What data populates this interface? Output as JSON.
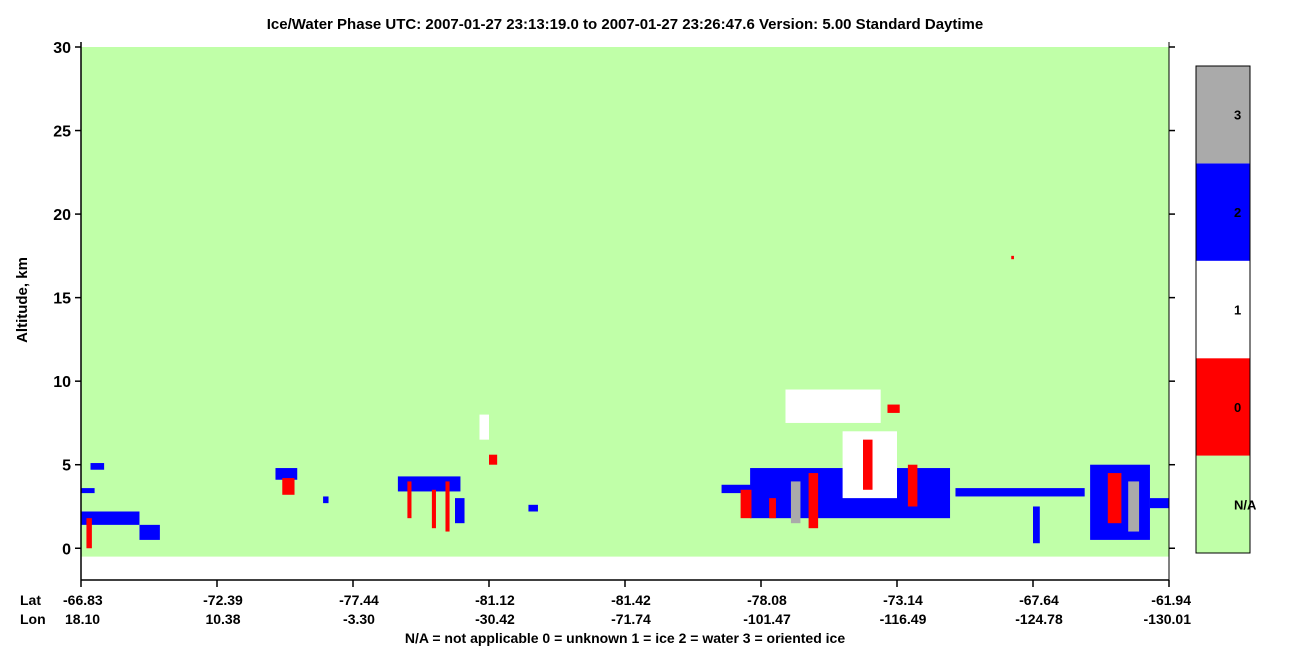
{
  "chart_data": {
    "type": "curtain",
    "title": "Ice/Water Phase    UTC:  2007-01-27   23:13:19.0  to  2007-01-27   23:26:47.6    Version: 5.00  Standard Daytime",
    "y_label": "Altitude, km",
    "lat_label": "Lat",
    "lon_label": "Lon",
    "footnote": "N/A = not applicable     0 = unknown     1 = ice     2 = water     3 = oriented ice",
    "lat": [
      "-66.83",
      "-72.39",
      "-77.44",
      "-81.12",
      "-81.42",
      "-78.08",
      "-73.14",
      "-67.64",
      "-61.94"
    ],
    "lon": [
      "18.10",
      "10.38",
      "-3.30",
      "-30.42",
      "-71.74",
      "-101.47",
      "-116.49",
      "-124.78",
      "-130.01"
    ],
    "ylim": [
      -1.9,
      30
    ],
    "yticks": [
      0,
      5,
      10,
      15,
      20,
      25,
      30
    ],
    "na_range": [
      -0.5,
      30
    ],
    "classes": [
      {
        "label": "N/A",
        "color": "#c0ffa8"
      },
      {
        "label": "0",
        "color": "#ff0000"
      },
      {
        "label": "1",
        "color": "#ffffff"
      },
      {
        "label": "2",
        "color": "#0000ff"
      },
      {
        "label": "3",
        "color": "#aaaaaa"
      }
    ],
    "features": [
      {
        "x": [
          0,
          0.43
        ],
        "y": [
          1.4,
          2.2
        ],
        "class": 3
      },
      {
        "x": [
          0.43,
          0.58
        ],
        "y": [
          0.5,
          1.4
        ],
        "class": 3
      },
      {
        "x": [
          0.04,
          0.08
        ],
        "y": [
          0,
          1.8
        ],
        "class": 1
      },
      {
        "x": [
          0.0,
          0.1
        ],
        "y": [
          3.3,
          3.6
        ],
        "class": 3
      },
      {
        "x": [
          0.07,
          0.17
        ],
        "y": [
          4.7,
          5.1
        ],
        "class": 3
      },
      {
        "x": [
          1.43,
          1.59
        ],
        "y": [
          4.1,
          4.8
        ],
        "class": 3
      },
      {
        "x": [
          1.48,
          1.57
        ],
        "y": [
          3.2,
          4.2
        ],
        "class": 1
      },
      {
        "x": [
          1.78,
          1.82
        ],
        "y": [
          2.7,
          3.1
        ],
        "class": 3
      },
      {
        "x": [
          2.33,
          2.79
        ],
        "y": [
          3.4,
          4.3
        ],
        "class": 3
      },
      {
        "x": [
          2.4,
          2.43
        ],
        "y": [
          1.8,
          4.0
        ],
        "class": 1
      },
      {
        "x": [
          2.58,
          2.61
        ],
        "y": [
          1.2,
          3.5
        ],
        "class": 1
      },
      {
        "x": [
          2.68,
          2.71
        ],
        "y": [
          1.0,
          4.0
        ],
        "class": 1
      },
      {
        "x": [
          2.75,
          2.82
        ],
        "y": [
          1.5,
          3.0
        ],
        "class": 3
      },
      {
        "x": [
          2.93,
          3.0
        ],
        "y": [
          6.5,
          8.0
        ],
        "class": 2
      },
      {
        "x": [
          3.0,
          3.06
        ],
        "y": [
          5.0,
          5.6
        ],
        "class": 1
      },
      {
        "x": [
          3.29,
          3.36
        ],
        "y": [
          2.2,
          2.6
        ],
        "class": 3
      },
      {
        "x": [
          4.71,
          4.99
        ],
        "y": [
          3.3,
          3.8
        ],
        "class": 3
      },
      {
        "x": [
          4.92,
          6.39
        ],
        "y": [
          1.8,
          4.8
        ],
        "class": 3
      },
      {
        "x": [
          5.18,
          5.88
        ],
        "y": [
          7.5,
          9.5
        ],
        "class": 2
      },
      {
        "x": [
          5.6,
          6.0
        ],
        "y": [
          3.0,
          7.0
        ],
        "class": 2
      },
      {
        "x": [
          4.85,
          4.93
        ],
        "y": [
          1.8,
          3.5
        ],
        "class": 1
      },
      {
        "x": [
          5.06,
          5.11
        ],
        "y": [
          1.8,
          3.0
        ],
        "class": 1
      },
      {
        "x": [
          5.22,
          5.29
        ],
        "y": [
          1.5,
          4.0
        ],
        "class": 4
      },
      {
        "x": [
          5.35,
          5.42
        ],
        "y": [
          1.2,
          4.5
        ],
        "class": 1
      },
      {
        "x": [
          5.75,
          5.82
        ],
        "y": [
          3.5,
          6.5
        ],
        "class": 1
      },
      {
        "x": [
          5.93,
          6.02
        ],
        "y": [
          8.1,
          8.6
        ],
        "class": 1
      },
      {
        "x": [
          6.08,
          6.15
        ],
        "y": [
          2.5,
          5.0
        ],
        "class": 1
      },
      {
        "x": [
          6.43,
          7.38
        ],
        "y": [
          3.1,
          3.6
        ],
        "class": 3
      },
      {
        "x": [
          6.84,
          6.86
        ],
        "y": [
          17.3,
          17.5
        ],
        "class": 1
      },
      {
        "x": [
          7.0,
          7.05
        ],
        "y": [
          0.3,
          2.5
        ],
        "class": 3
      },
      {
        "x": [
          7.42,
          7.86
        ],
        "y": [
          0.5,
          5.0
        ],
        "class": 3
      },
      {
        "x": [
          7.55,
          7.65
        ],
        "y": [
          1.5,
          4.5
        ],
        "class": 1
      },
      {
        "x": [
          7.7,
          7.78
        ],
        "y": [
          1.0,
          4.0
        ],
        "class": 4
      },
      {
        "x": [
          7.86,
          8.0
        ],
        "y": [
          2.4,
          3.0
        ],
        "class": 3
      }
    ]
  }
}
